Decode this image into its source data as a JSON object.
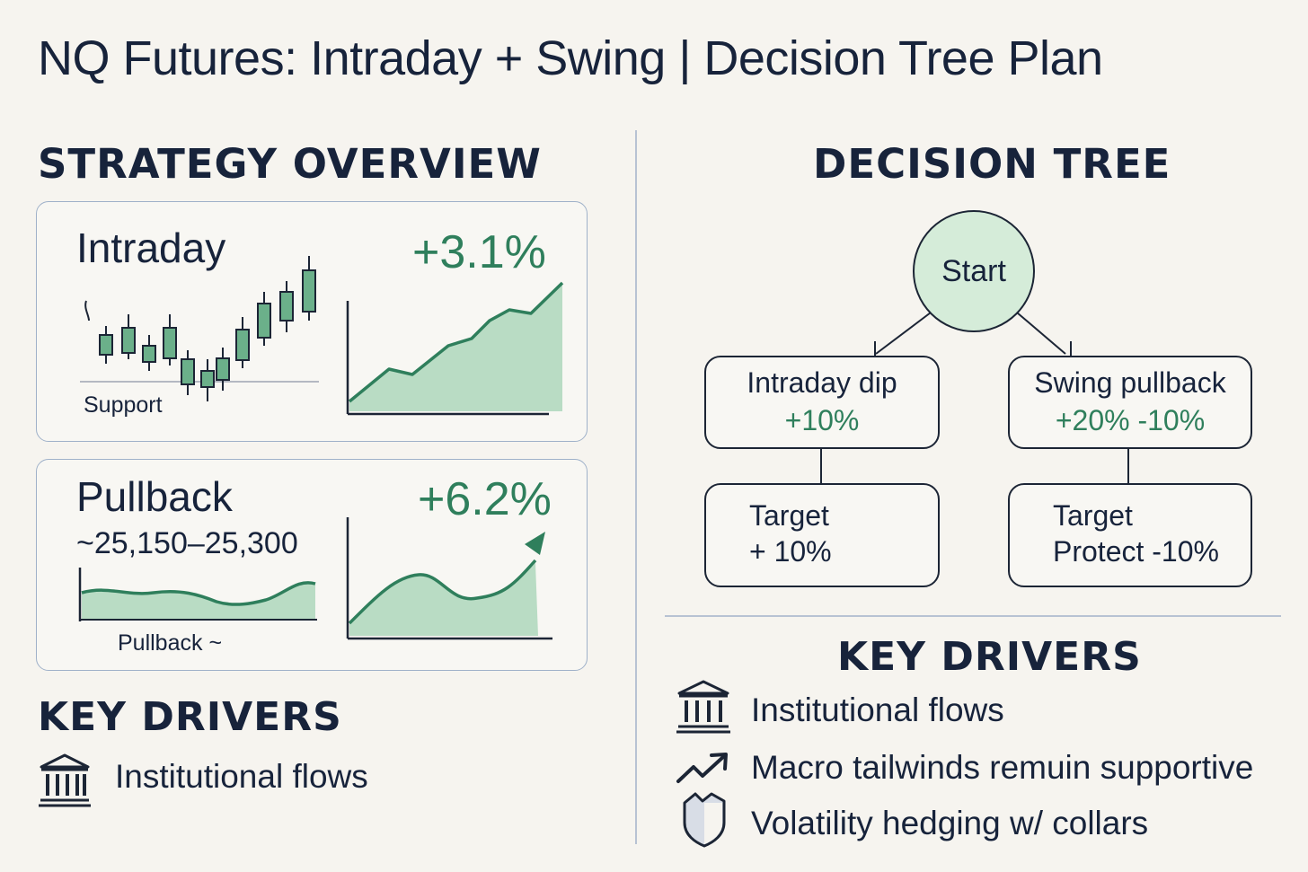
{
  "title": "NQ Futures: Intraday + Swing | Decision Tree Plan",
  "left": {
    "heading": "STRATEGY OVERVIEW",
    "card_intraday": {
      "label": "Intraday",
      "change": "+3.1%",
      "chart_label": "Support"
    },
    "card_pullback": {
      "label": "Pullback",
      "range": "~25,150–25,300",
      "change": "+6.2%",
      "chart_label": "Pullback ~"
    },
    "drivers_heading": "KEY DRIVERS",
    "drivers": [
      {
        "icon": "bank-icon",
        "text": "Institutional flows"
      }
    ]
  },
  "right": {
    "heading": "DECISION TREE",
    "tree": {
      "root": "Start",
      "left_branch": {
        "label": "Intraday dip",
        "value": "+10%"
      },
      "right_branch": {
        "label": "Swing pullback",
        "value": "+20% -10%"
      },
      "left_leaf": {
        "line1": "Target",
        "line2": "+ 10%"
      },
      "right_leaf": {
        "line1": "Target",
        "line2": "Protect -10%"
      }
    },
    "drivers_heading": "KEY DRIVERS",
    "drivers": [
      {
        "icon": "bank-icon",
        "text": "Institutional flows"
      },
      {
        "icon": "trend-up-icon",
        "text": "Macro tailwinds remuin supportive"
      },
      {
        "icon": "shield-icon",
        "text": "Volatility hedging w/ collars"
      }
    ]
  },
  "colors": {
    "background": "#f6f4ef",
    "ink": "#17233b",
    "accent_green": "#2f7f5c",
    "fill_green": "#b9dcc4",
    "node_fill": "#d5ecd9"
  }
}
